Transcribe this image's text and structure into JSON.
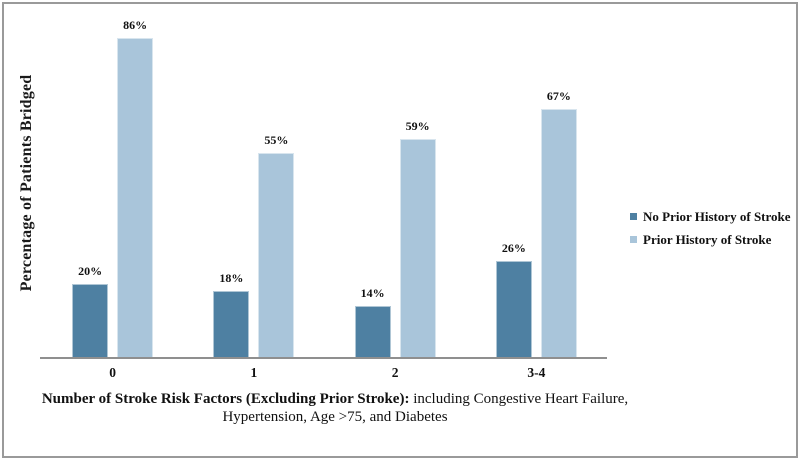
{
  "window": {
    "background_color": "#ffffff",
    "frame_border_color": "#9a9a9a"
  },
  "chart_data": {
    "type": "bar",
    "title": "",
    "ylabel": "Percentage of Patients Bridged",
    "xlabel": {
      "bold": "Number of Stroke Risk Factors (Excluding Prior Stroke):",
      "regular": " including Congestive Heart Failure,",
      "line2": "Hypertension, Age >75, and Diabetes"
    },
    "categories": [
      "0",
      "1",
      "2",
      "3-4"
    ],
    "series": [
      {
        "name": "No Prior History of Stroke",
        "color": "#4e80a2",
        "values": [
          20,
          18,
          14,
          26
        ],
        "data_labels": [
          "20%",
          "18%",
          "14%",
          "26%"
        ]
      },
      {
        "name": "Prior History of Stroke",
        "color": "#a9c5da",
        "values": [
          86,
          55,
          59,
          67
        ],
        "data_labels": [
          "86%",
          "55%",
          "59%",
          "67%"
        ]
      }
    ],
    "ylim": [
      0,
      100
    ],
    "grid": false,
    "axis_color": "#8f8f8f",
    "legend_position": "middle-right"
  }
}
